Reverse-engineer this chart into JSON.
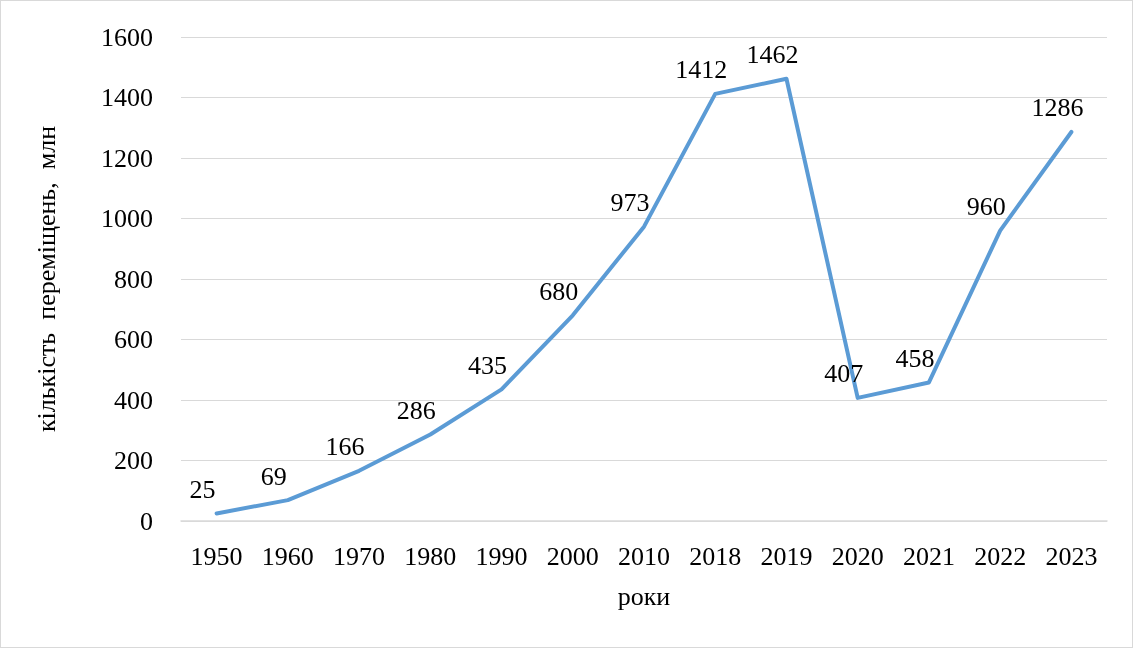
{
  "chart_data": {
    "type": "line",
    "xlabel": "роки",
    "ylabel": "кількість  переміщень,  млн",
    "categories": [
      "1950",
      "1960",
      "1970",
      "1980",
      "1990",
      "2000",
      "2010",
      "2018",
      "2019",
      "2020",
      "2021",
      "2022",
      "2023"
    ],
    "series": [
      {
        "color": "#5b9bd5",
        "values": [
          25,
          69,
          166,
          286,
          435,
          680,
          973,
          1412,
          1462,
          407,
          458,
          960,
          1286
        ]
      }
    ],
    "ylim": [
      0,
      1600
    ],
    "yticks": [
      0,
      200,
      400,
      600,
      800,
      1000,
      1200,
      1400,
      1600
    ],
    "grid": "y",
    "marker": "none",
    "line_style": "solid",
    "data_labels": true
  }
}
